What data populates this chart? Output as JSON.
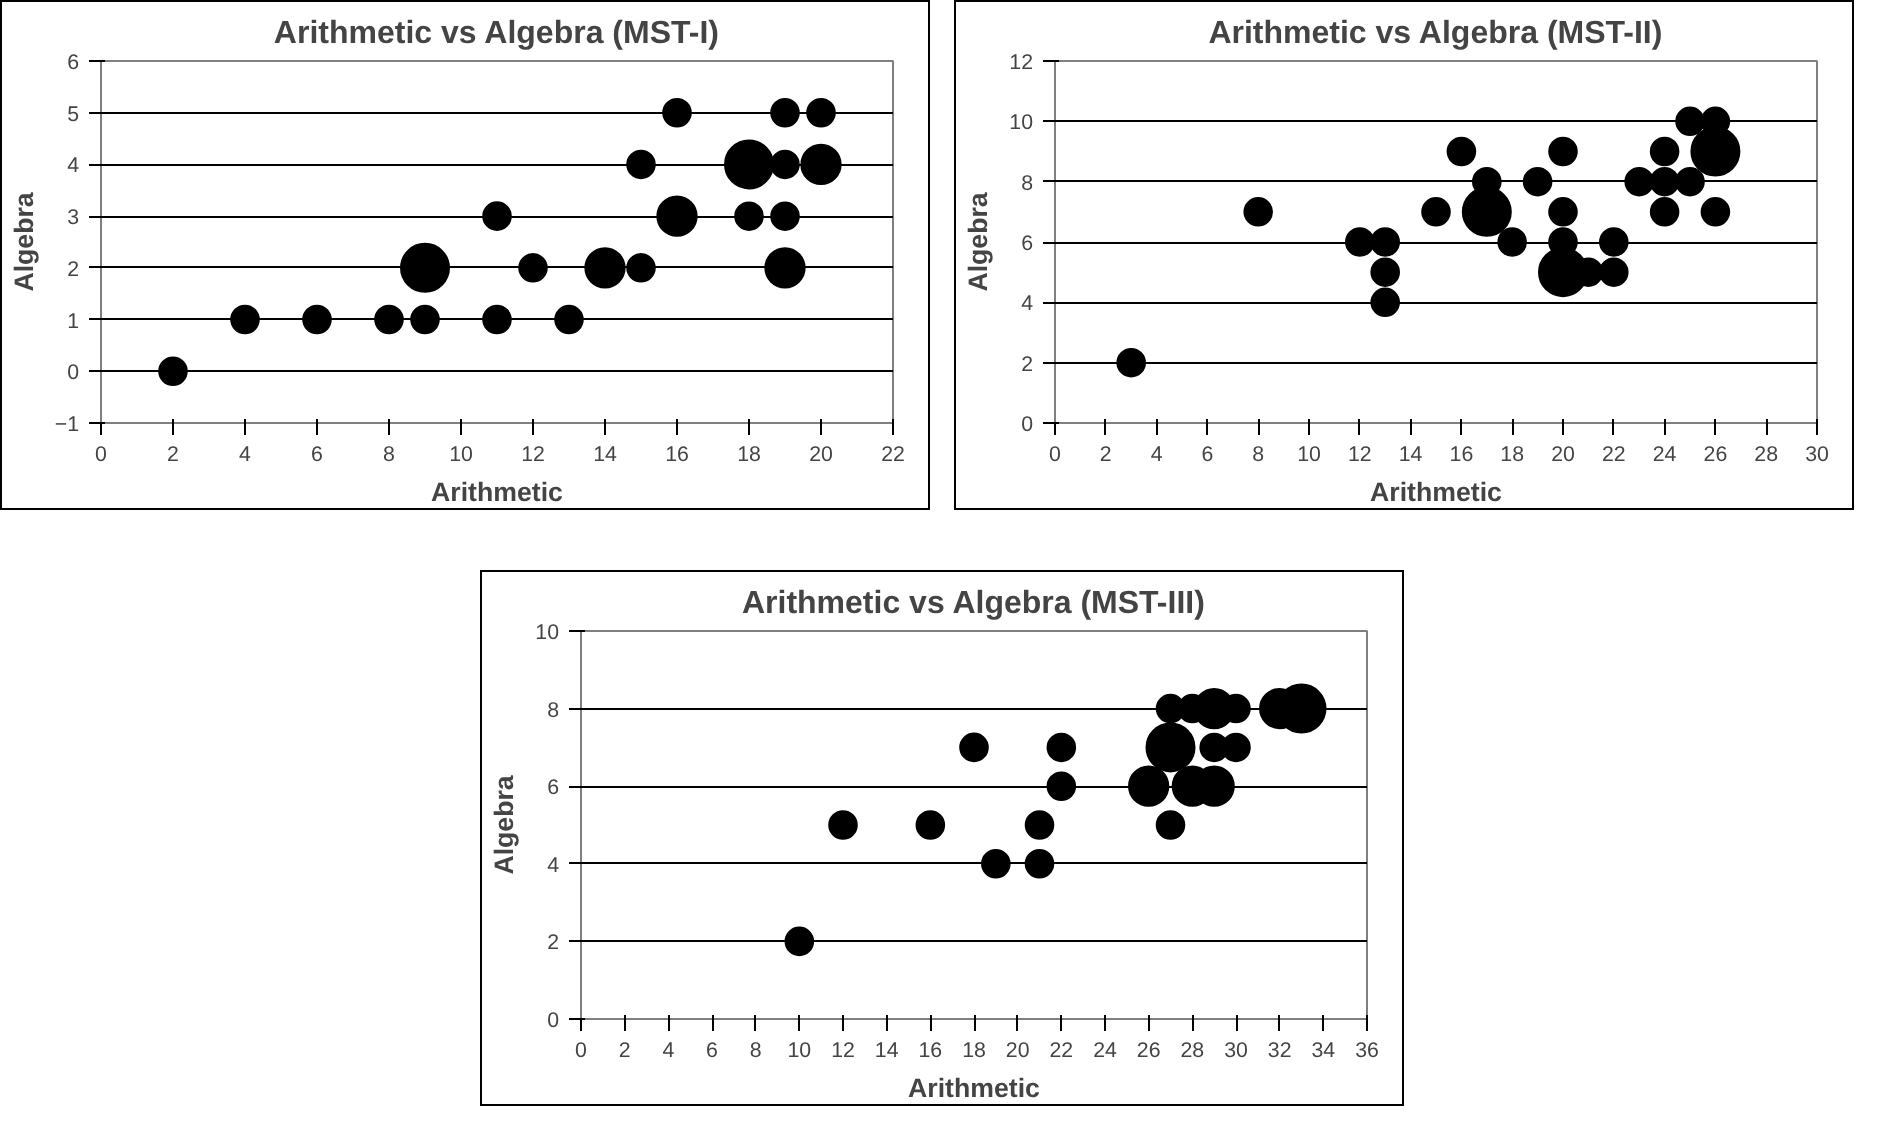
{
  "chart_data": [
    {
      "type": "bubble",
      "title": "Arithmetic vs Algebra (MST-I)",
      "xlabel": "Arithmetic",
      "ylabel": "Algebra",
      "color": "#000000",
      "marker": "circle",
      "grid": "y",
      "xlim": [
        0,
        22
      ],
      "xticks": [
        0,
        2,
        4,
        6,
        8,
        10,
        12,
        14,
        16,
        18,
        20,
        22
      ],
      "ylim": [
        -1,
        6
      ],
      "yticks": [
        -1,
        0,
        1,
        2,
        3,
        4,
        5,
        6
      ],
      "x": [
        2,
        4,
        6,
        8,
        9,
        11,
        13,
        9,
        12,
        14,
        15,
        19,
        11,
        16,
        18,
        19,
        15,
        18,
        19,
        20,
        16,
        19,
        20
      ],
      "values": [
        0,
        1,
        1,
        1,
        1,
        1,
        1,
        2,
        2,
        2,
        2,
        2,
        3,
        3,
        3,
        3,
        4,
        4,
        4,
        4,
        5,
        5,
        5
      ],
      "sizes": [
        0.33,
        0.33,
        0.33,
        0.33,
        0.33,
        0.33,
        0.33,
        1,
        0.33,
        0.67,
        0.33,
        0.67,
        0.33,
        0.67,
        0.33,
        0.33,
        0.33,
        1,
        0.33,
        0.67,
        0.33,
        0.33,
        0.33
      ]
    },
    {
      "type": "bubble",
      "title": "Arithmetic vs Algebra (MST-II)",
      "xlabel": "Arithmetic",
      "ylabel": "Algebra",
      "color": "#000000",
      "marker": "circle",
      "grid": "y",
      "xlim": [
        0,
        30
      ],
      "xticks": [
        0,
        2,
        4,
        6,
        8,
        10,
        12,
        14,
        16,
        18,
        20,
        22,
        24,
        26,
        28,
        30
      ],
      "ylim": [
        0,
        12
      ],
      "yticks": [
        0,
        2,
        4,
        6,
        8,
        10,
        12
      ],
      "x": [
        3,
        8,
        12,
        13,
        13,
        13,
        15,
        16,
        17,
        17,
        18,
        19,
        20,
        20,
        20,
        20,
        21,
        22,
        22,
        23,
        24,
        24,
        24,
        25,
        25,
        26,
        26,
        26
      ],
      "values": [
        2,
        7,
        6,
        6,
        5,
        4,
        7,
        9,
        8,
        7,
        6,
        8,
        9,
        7,
        6,
        5,
        5,
        6,
        5,
        8,
        9,
        8,
        7,
        10,
        8,
        10,
        9,
        7
      ],
      "sizes": [
        0.33,
        0.33,
        0.33,
        0.33,
        0.33,
        0.33,
        0.33,
        0.33,
        0.33,
        1,
        0.33,
        0.33,
        0.33,
        0.33,
        0.33,
        1,
        0.33,
        0.33,
        0.33,
        0.33,
        0.33,
        0.33,
        0.33,
        0.33,
        0.33,
        0.33,
        1,
        0.33
      ]
    },
    {
      "type": "bubble",
      "title": "Arithmetic vs Algebra (MST-III)",
      "xlabel": "Arithmetic",
      "ylabel": "Algebra",
      "color": "#000000",
      "marker": "circle",
      "grid": "y",
      "xlim": [
        0,
        36
      ],
      "xticks": [
        0,
        2,
        4,
        6,
        8,
        10,
        12,
        14,
        16,
        18,
        20,
        22,
        24,
        26,
        28,
        30,
        32,
        34,
        36
      ],
      "ylim": [
        0,
        10
      ],
      "yticks": [
        0,
        2,
        4,
        6,
        8,
        10
      ],
      "x": [
        10,
        12,
        16,
        18,
        19,
        21,
        21,
        22,
        22,
        26,
        27,
        27,
        27,
        28,
        28,
        29,
        29,
        29,
        30,
        30,
        32,
        33
      ],
      "values": [
        2,
        5,
        5,
        7,
        4,
        5,
        4,
        7,
        6,
        6,
        8,
        7,
        5,
        8,
        6,
        8,
        7,
        6,
        8,
        7,
        8,
        8
      ],
      "sizes": [
        0.33,
        0.33,
        0.33,
        0.33,
        0.33,
        0.33,
        0.33,
        0.33,
        0.33,
        0.67,
        0.33,
        1,
        0.33,
        0.33,
        0.67,
        0.67,
        0.33,
        0.67,
        0.33,
        0.33,
        0.67,
        1
      ]
    }
  ]
}
